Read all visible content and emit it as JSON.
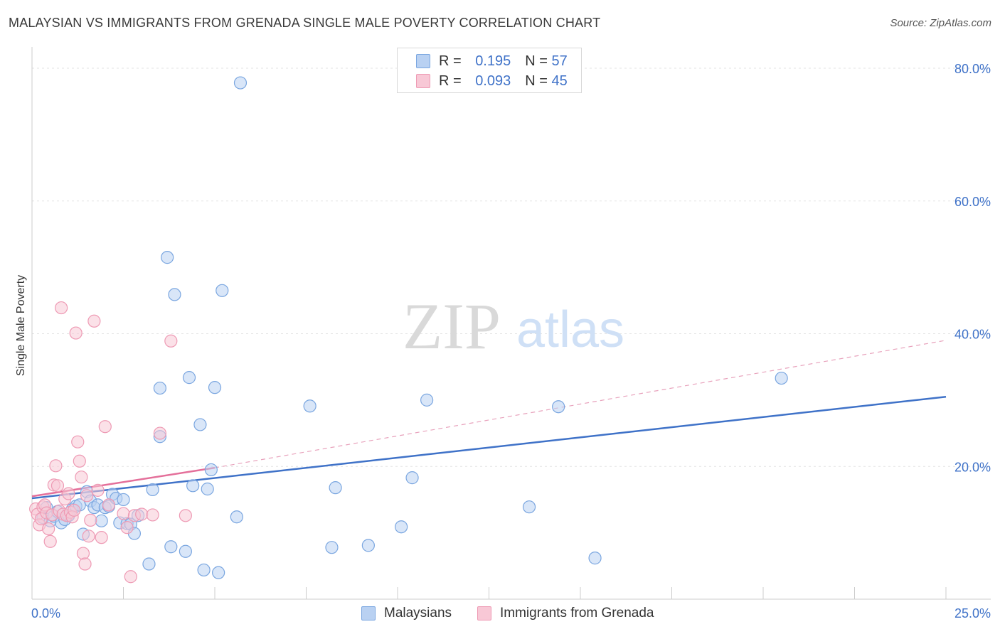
{
  "title": "MALAYSIAN VS IMMIGRANTS FROM GRENADA SINGLE MALE POVERTY CORRELATION CHART",
  "source": "Source: ZipAtlas.com",
  "watermark": {
    "zip": "ZIP",
    "atlas": "atlas"
  },
  "legend": {
    "r_label": "R =",
    "n_label": "N =",
    "rows": [
      {
        "r": "0.195",
        "n": "57",
        "fill": "#b9d1f2",
        "stroke": "#7aa6e0"
      },
      {
        "r": "0.093",
        "n": "45",
        "fill": "#f8c8d6",
        "stroke": "#ee9ab4"
      }
    ]
  },
  "bottom_legend": [
    "Malaysians",
    "Immigrants from Grenada"
  ],
  "chart_data": {
    "type": "scatter",
    "title": "MALAYSIAN VS IMMIGRANTS FROM GRENADA SINGLE MALE POVERTY CORRELATION CHART",
    "xlabel": "",
    "ylabel": "Single Male Poverty",
    "xlim": [
      0,
      25
    ],
    "ylim": [
      0,
      80
    ],
    "x_tick_labels": [
      "0.0%",
      "25.0%"
    ],
    "y_ticks": [
      20,
      40,
      60,
      80
    ],
    "y_tick_labels": [
      "20.0%",
      "40.0%",
      "60.0%",
      "80.0%"
    ],
    "grid": true,
    "legend_position": "top-center",
    "series": [
      {
        "name": "Malaysians",
        "color": "#3f72c8",
        "fill": "#b9d1f2",
        "trend": {
          "x": [
            0,
            25
          ],
          "y": [
            15.2,
            30.5
          ],
          "style": "solid"
        },
        "points": [
          [
            0.3,
            12.3
          ],
          [
            0.4,
            13.8
          ],
          [
            0.5,
            11.8
          ],
          [
            0.6,
            12.5
          ],
          [
            0.7,
            13.2
          ],
          [
            0.8,
            11.5
          ],
          [
            0.9,
            12.0
          ],
          [
            1.0,
            12.6
          ],
          [
            1.1,
            13.5
          ],
          [
            1.2,
            14.0
          ],
          [
            1.3,
            14.2
          ],
          [
            1.4,
            9.8
          ],
          [
            1.5,
            16.2
          ],
          [
            1.6,
            14.8
          ],
          [
            1.7,
            13.8
          ],
          [
            1.8,
            14.2
          ],
          [
            1.9,
            11.8
          ],
          [
            2.0,
            13.8
          ],
          [
            2.1,
            14.0
          ],
          [
            2.2,
            15.8
          ],
          [
            2.3,
            15.2
          ],
          [
            2.4,
            11.5
          ],
          [
            2.5,
            15.0
          ],
          [
            2.6,
            11.4
          ],
          [
            2.7,
            11.3
          ],
          [
            2.8,
            9.9
          ],
          [
            2.9,
            12.6
          ],
          [
            3.2,
            5.3
          ],
          [
            3.3,
            16.5
          ],
          [
            3.5,
            31.8
          ],
          [
            3.5,
            24.5
          ],
          [
            3.7,
            51.5
          ],
          [
            3.8,
            7.9
          ],
          [
            3.9,
            45.9
          ],
          [
            4.2,
            7.2
          ],
          [
            4.3,
            33.4
          ],
          [
            4.4,
            17.1
          ],
          [
            4.6,
            26.3
          ],
          [
            4.7,
            4.4
          ],
          [
            4.8,
            16.6
          ],
          [
            4.9,
            19.5
          ],
          [
            5.0,
            31.9
          ],
          [
            5.1,
            4.0
          ],
          [
            5.2,
            46.5
          ],
          [
            5.6,
            12.4
          ],
          [
            5.7,
            77.8
          ],
          [
            7.6,
            29.1
          ],
          [
            8.2,
            7.8
          ],
          [
            8.3,
            16.8
          ],
          [
            9.2,
            8.1
          ],
          [
            10.1,
            10.9
          ],
          [
            10.4,
            18.3
          ],
          [
            10.8,
            30.0
          ],
          [
            13.6,
            13.9
          ],
          [
            14.4,
            29.0
          ],
          [
            15.4,
            6.2
          ],
          [
            20.5,
            33.3
          ]
        ]
      },
      {
        "name": "Immigrants from Grenada",
        "color": "#e46f9a",
        "fill": "#f8c8d6",
        "trend": {
          "x": [
            0,
            5.0,
            25
          ],
          "y": [
            15.5,
            19.8,
            39.0
          ],
          "style": "solid-then-dashed"
        },
        "points": [
          [
            0.1,
            13.6
          ],
          [
            0.15,
            12.8
          ],
          [
            0.2,
            11.2
          ],
          [
            0.25,
            12.1
          ],
          [
            0.3,
            13.9
          ],
          [
            0.35,
            14.2
          ],
          [
            0.4,
            13.0
          ],
          [
            0.45,
            10.6
          ],
          [
            0.5,
            8.7
          ],
          [
            0.55,
            12.7
          ],
          [
            0.6,
            17.2
          ],
          [
            0.65,
            20.1
          ],
          [
            0.7,
            17.1
          ],
          [
            0.75,
            13.3
          ],
          [
            0.8,
            43.9
          ],
          [
            0.85,
            12.8
          ],
          [
            0.9,
            15.1
          ],
          [
            0.95,
            12.6
          ],
          [
            1.0,
            15.9
          ],
          [
            1.05,
            13.1
          ],
          [
            1.1,
            12.4
          ],
          [
            1.15,
            13.4
          ],
          [
            1.2,
            40.1
          ],
          [
            1.25,
            23.7
          ],
          [
            1.3,
            20.8
          ],
          [
            1.35,
            18.4
          ],
          [
            1.4,
            6.9
          ],
          [
            1.45,
            5.3
          ],
          [
            1.5,
            15.6
          ],
          [
            1.55,
            9.5
          ],
          [
            1.6,
            11.9
          ],
          [
            1.7,
            41.9
          ],
          [
            1.8,
            16.4
          ],
          [
            1.9,
            9.3
          ],
          [
            2.0,
            26.0
          ],
          [
            2.1,
            14.2
          ],
          [
            2.5,
            12.9
          ],
          [
            2.6,
            10.8
          ],
          [
            2.7,
            3.4
          ],
          [
            2.8,
            12.6
          ],
          [
            3.0,
            12.8
          ],
          [
            3.3,
            12.7
          ],
          [
            3.5,
            25.0
          ],
          [
            3.8,
            38.9
          ],
          [
            4.2,
            12.6
          ]
        ]
      }
    ]
  }
}
